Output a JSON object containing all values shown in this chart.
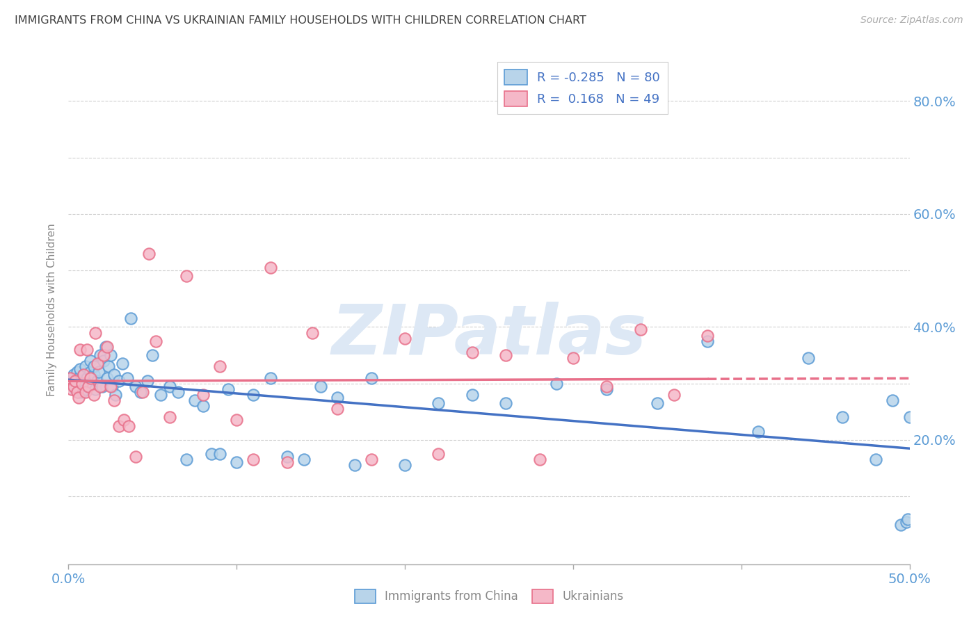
{
  "title": "IMMIGRANTS FROM CHINA VS UKRAINIAN FAMILY HOUSEHOLDS WITH CHILDREN CORRELATION CHART",
  "source_text": "Source: ZipAtlas.com",
  "ylabel": "Family Households with Children",
  "xlim": [
    0.0,
    0.5
  ],
  "ylim": [
    -0.02,
    0.88
  ],
  "xticks": [
    0.0,
    0.1,
    0.2,
    0.3,
    0.4,
    0.5
  ],
  "xtick_labels": [
    "0.0%",
    "",
    "",
    "",
    "",
    "50.0%"
  ],
  "yticks": [
    0.0,
    0.1,
    0.2,
    0.3,
    0.4,
    0.5,
    0.6,
    0.7,
    0.8
  ],
  "ytick_labels_right": [
    "",
    "",
    "20.0%",
    "",
    "40.0%",
    "",
    "60.0%",
    "",
    "80.0%"
  ],
  "watermark": "ZIPatlas",
  "legend_blue_label": "R = -0.285   N = 80",
  "legend_pink_label": "R =  0.168   N = 49",
  "blue_fill": "#b8d4ea",
  "pink_fill": "#f5b8c8",
  "blue_edge": "#5b9bd5",
  "pink_edge": "#e8708a",
  "blue_line": "#4472c4",
  "pink_line": "#e8708a",
  "background_color": "#ffffff",
  "grid_color": "#d0d0d0",
  "title_color": "#404040",
  "axis_label_color": "#5b9bd5",
  "watermark_color": "#dde8f5",
  "blue_scatter_x": [
    0.001,
    0.002,
    0.003,
    0.003,
    0.004,
    0.004,
    0.005,
    0.005,
    0.006,
    0.006,
    0.007,
    0.007,
    0.008,
    0.008,
    0.009,
    0.01,
    0.01,
    0.011,
    0.012,
    0.013,
    0.013,
    0.014,
    0.015,
    0.015,
    0.016,
    0.017,
    0.018,
    0.019,
    0.02,
    0.021,
    0.022,
    0.023,
    0.024,
    0.025,
    0.026,
    0.027,
    0.028,
    0.03,
    0.032,
    0.035,
    0.037,
    0.04,
    0.043,
    0.047,
    0.05,
    0.055,
    0.06,
    0.065,
    0.07,
    0.075,
    0.08,
    0.085,
    0.09,
    0.095,
    0.1,
    0.11,
    0.12,
    0.13,
    0.14,
    0.15,
    0.16,
    0.17,
    0.18,
    0.2,
    0.22,
    0.24,
    0.26,
    0.29,
    0.32,
    0.35,
    0.38,
    0.41,
    0.44,
    0.46,
    0.48,
    0.49,
    0.495,
    0.498,
    0.499,
    0.5
  ],
  "blue_scatter_y": [
    0.31,
    0.3,
    0.295,
    0.315,
    0.29,
    0.305,
    0.295,
    0.32,
    0.31,
    0.285,
    0.3,
    0.325,
    0.285,
    0.305,
    0.315,
    0.29,
    0.33,
    0.31,
    0.295,
    0.32,
    0.34,
    0.3,
    0.315,
    0.33,
    0.29,
    0.305,
    0.32,
    0.35,
    0.295,
    0.34,
    0.365,
    0.31,
    0.33,
    0.35,
    0.295,
    0.315,
    0.28,
    0.305,
    0.335,
    0.31,
    0.415,
    0.295,
    0.285,
    0.305,
    0.35,
    0.28,
    0.295,
    0.285,
    0.165,
    0.27,
    0.26,
    0.175,
    0.175,
    0.29,
    0.16,
    0.28,
    0.31,
    0.17,
    0.165,
    0.295,
    0.275,
    0.155,
    0.31,
    0.155,
    0.265,
    0.28,
    0.265,
    0.3,
    0.29,
    0.265,
    0.375,
    0.215,
    0.345,
    0.24,
    0.165,
    0.27,
    0.05,
    0.055,
    0.06,
    0.24
  ],
  "pink_scatter_x": [
    0.001,
    0.002,
    0.003,
    0.004,
    0.005,
    0.006,
    0.007,
    0.008,
    0.009,
    0.01,
    0.011,
    0.012,
    0.013,
    0.015,
    0.016,
    0.017,
    0.019,
    0.021,
    0.023,
    0.025,
    0.027,
    0.03,
    0.033,
    0.036,
    0.04,
    0.044,
    0.048,
    0.052,
    0.06,
    0.07,
    0.08,
    0.09,
    0.1,
    0.11,
    0.12,
    0.13,
    0.145,
    0.16,
    0.18,
    0.2,
    0.22,
    0.24,
    0.26,
    0.28,
    0.3,
    0.32,
    0.34,
    0.36,
    0.38
  ],
  "pink_scatter_y": [
    0.31,
    0.29,
    0.295,
    0.305,
    0.285,
    0.275,
    0.36,
    0.3,
    0.315,
    0.285,
    0.36,
    0.295,
    0.31,
    0.28,
    0.39,
    0.335,
    0.295,
    0.35,
    0.365,
    0.295,
    0.27,
    0.225,
    0.235,
    0.225,
    0.17,
    0.285,
    0.53,
    0.375,
    0.24,
    0.49,
    0.28,
    0.33,
    0.235,
    0.165,
    0.505,
    0.16,
    0.39,
    0.255,
    0.165,
    0.38,
    0.175,
    0.355,
    0.35,
    0.165,
    0.345,
    0.295,
    0.395,
    0.28,
    0.385
  ]
}
